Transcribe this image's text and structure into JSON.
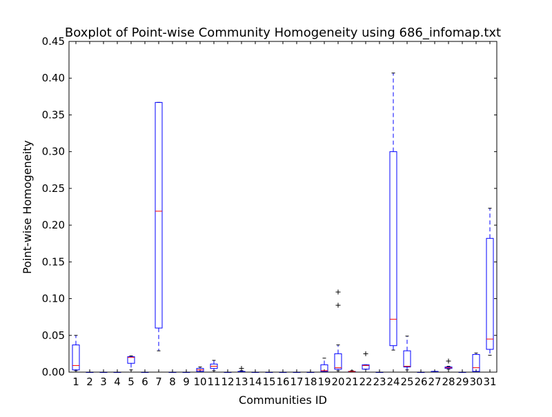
{
  "chart_data": {
    "type": "boxplot",
    "title": "Boxplot of Point-wise Community Homogeneity using 686_infomap.txt",
    "xlabel": "Communities ID",
    "ylabel": "Point-wise Homogeneity",
    "ylim": [
      0,
      0.45
    ],
    "yticks": [
      0.0,
      0.05,
      0.1,
      0.15,
      0.2,
      0.25,
      0.3,
      0.35,
      0.4,
      0.45
    ],
    "categories": [
      "1",
      "2",
      "3",
      "4",
      "5",
      "6",
      "7",
      "8",
      "9",
      "10",
      "11",
      "12",
      "13",
      "14",
      "15",
      "16",
      "17",
      "18",
      "19",
      "20",
      "21",
      "22",
      "23",
      "24",
      "25",
      "26",
      "27",
      "28",
      "29",
      "30",
      "31"
    ],
    "colors": {
      "box": "#0000ff",
      "median": "#ff0000",
      "whisker": "#0000ff",
      "cap": "#000000",
      "flier": "#000000"
    },
    "grid": false,
    "legend": "none",
    "boxes": [
      {
        "id": "1",
        "whislo": 0.002,
        "q1": 0.003,
        "med": 0.009,
        "q3": 0.037,
        "whishi": 0.05,
        "fliers": []
      },
      {
        "id": "2",
        "whislo": 0.0,
        "q1": 0.0,
        "med": 0.0,
        "q3": 0.0,
        "whishi": 0.0,
        "fliers": []
      },
      {
        "id": "3",
        "whislo": 0.0,
        "q1": 0.0,
        "med": 0.0,
        "q3": 0.0,
        "whishi": 0.0,
        "fliers": []
      },
      {
        "id": "4",
        "whislo": 0.0,
        "q1": 0.0,
        "med": 0.0,
        "q3": 0.0,
        "whishi": 0.0,
        "fliers": []
      },
      {
        "id": "5",
        "whislo": 0.003,
        "q1": 0.012,
        "med": 0.02,
        "q3": 0.021,
        "whishi": 0.022,
        "fliers": []
      },
      {
        "id": "6",
        "whislo": 0.0,
        "q1": 0.0,
        "med": 0.0,
        "q3": 0.0,
        "whishi": 0.0,
        "fliers": []
      },
      {
        "id": "7",
        "whislo": 0.029,
        "q1": 0.06,
        "med": 0.219,
        "q3": 0.367,
        "whishi": 0.367,
        "fliers": []
      },
      {
        "id": "8",
        "whislo": 0.0,
        "q1": 0.0,
        "med": 0.0,
        "q3": 0.0,
        "whishi": 0.0,
        "fliers": []
      },
      {
        "id": "9",
        "whislo": 0.0,
        "q1": 0.0,
        "med": 0.0,
        "q3": 0.0,
        "whishi": 0.0,
        "fliers": []
      },
      {
        "id": "10",
        "whislo": 0.0,
        "q1": 0.001,
        "med": 0.003,
        "q3": 0.005,
        "whishi": 0.007,
        "fliers": []
      },
      {
        "id": "11",
        "whislo": 0.002,
        "q1": 0.005,
        "med": 0.008,
        "q3": 0.011,
        "whishi": 0.016,
        "fliers": []
      },
      {
        "id": "12",
        "whislo": 0.0,
        "q1": 0.0,
        "med": 0.0,
        "q3": 0.0,
        "whishi": 0.0,
        "fliers": []
      },
      {
        "id": "13",
        "whislo": 0.0,
        "q1": 0.0,
        "med": 0.0,
        "q3": 0.001,
        "whishi": 0.002,
        "fliers": [
          0.005
        ]
      },
      {
        "id": "14",
        "whislo": 0.0,
        "q1": 0.0,
        "med": 0.0,
        "q3": 0.0,
        "whishi": 0.0,
        "fliers": []
      },
      {
        "id": "15",
        "whislo": 0.0,
        "q1": 0.0,
        "med": 0.0,
        "q3": 0.0,
        "whishi": 0.0,
        "fliers": []
      },
      {
        "id": "16",
        "whislo": 0.0,
        "q1": 0.0,
        "med": 0.0,
        "q3": 0.0,
        "whishi": 0.0,
        "fliers": []
      },
      {
        "id": "17",
        "whislo": 0.0,
        "q1": 0.0,
        "med": 0.0,
        "q3": 0.0,
        "whishi": 0.0,
        "fliers": []
      },
      {
        "id": "18",
        "whislo": 0.0,
        "q1": 0.0,
        "med": 0.0,
        "q3": 0.0,
        "whishi": 0.0,
        "fliers": []
      },
      {
        "id": "19",
        "whislo": 0.0,
        "q1": 0.001,
        "med": 0.002,
        "q3": 0.01,
        "whishi": 0.019,
        "fliers": []
      },
      {
        "id": "20",
        "whislo": 0.002,
        "q1": 0.004,
        "med": 0.006,
        "q3": 0.025,
        "whishi": 0.037,
        "fliers": [
          0.091,
          0.109
        ]
      },
      {
        "id": "21",
        "whislo": 0.0,
        "q1": 0.0,
        "med": 0.001,
        "q3": 0.001,
        "whishi": 0.002,
        "fliers": []
      },
      {
        "id": "22",
        "whislo": 0.004,
        "q1": 0.004,
        "med": 0.009,
        "q3": 0.01,
        "whishi": 0.01,
        "fliers": [
          0.025
        ]
      },
      {
        "id": "23",
        "whislo": 0.0,
        "q1": 0.0,
        "med": 0.0,
        "q3": 0.0,
        "whishi": 0.0,
        "fliers": []
      },
      {
        "id": "24",
        "whislo": 0.03,
        "q1": 0.036,
        "med": 0.072,
        "q3": 0.3,
        "whishi": 0.407,
        "fliers": []
      },
      {
        "id": "25",
        "whislo": 0.003,
        "q1": 0.007,
        "med": 0.008,
        "q3": 0.029,
        "whishi": 0.049,
        "fliers": []
      },
      {
        "id": "26",
        "whislo": 0.0,
        "q1": 0.0,
        "med": 0.0,
        "q3": 0.0,
        "whishi": 0.0,
        "fliers": []
      },
      {
        "id": "27",
        "whislo": 0.0,
        "q1": 0.0,
        "med": 0.0,
        "q3": 0.001,
        "whishi": 0.001,
        "fliers": []
      },
      {
        "id": "28",
        "whislo": 0.004,
        "q1": 0.005,
        "med": 0.006,
        "q3": 0.007,
        "whishi": 0.008,
        "fliers": [
          0.015
        ]
      },
      {
        "id": "29",
        "whislo": 0.0,
        "q1": 0.0,
        "med": 0.0,
        "q3": 0.0,
        "whishi": 0.0,
        "fliers": []
      },
      {
        "id": "30",
        "whislo": 0.0,
        "q1": 0.001,
        "med": 0.006,
        "q3": 0.024,
        "whishi": 0.026,
        "fliers": []
      },
      {
        "id": "31",
        "whislo": 0.023,
        "q1": 0.031,
        "med": 0.045,
        "q3": 0.182,
        "whishi": 0.223,
        "fliers": []
      }
    ]
  }
}
